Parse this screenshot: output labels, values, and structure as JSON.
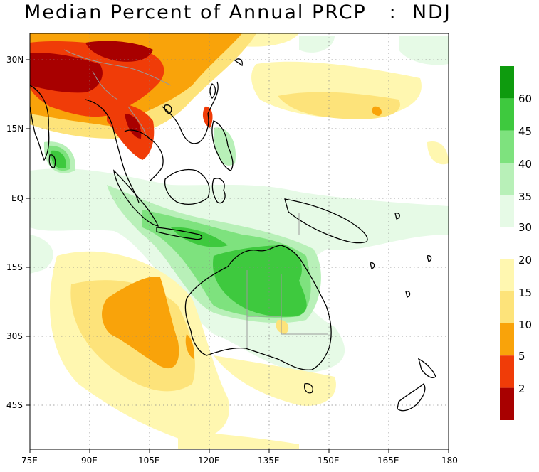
{
  "title": "Median Percent of Annual PRCP   :  NDJ",
  "map": {
    "lat_labels": [
      "30N",
      "15N",
      "EQ",
      "15S",
      "30S",
      "45S"
    ],
    "lon_labels": [
      "75E",
      "90E",
      "105E",
      "120E",
      "135E",
      "150E",
      "165E",
      "180"
    ],
    "lon_range": [
      75,
      180
    ],
    "lat_range": [
      -53,
      33
    ]
  },
  "legend": {
    "upper": {
      "labels": [
        "60",
        "45",
        "40",
        "35",
        "30"
      ],
      "colors": [
        "#0e9b0e",
        "#3ec93e",
        "#7ee27e",
        "#b8f0b8",
        "#e6fae6"
      ]
    },
    "lower": {
      "labels": [
        "20",
        "15",
        "10",
        "5",
        "2"
      ],
      "colors": [
        "#fff7b0",
        "#fde37a",
        "#f9a30a",
        "#f03c08",
        "#a80000"
      ]
    }
  },
  "palette": {
    "dry_dark": "#a80000",
    "dry_red": "#f03c08",
    "dry_orange": "#f9a30a",
    "dry_yellow": "#fde37a",
    "dry_pale": "#fff7b0",
    "wet_pale": "#e6fae6",
    "wet_light": "#b8f0b8",
    "wet_mid": "#7ee27e",
    "wet_green": "#3ec93e",
    "wet_dark": "#0e9b0e"
  }
}
